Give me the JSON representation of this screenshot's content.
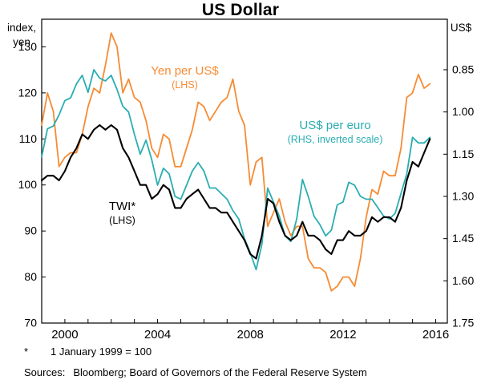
{
  "chart": {
    "title": "US Dollar",
    "lhs_unit": "index,\nyen",
    "rhs_unit": "US$",
    "annotations": {
      "yen": {
        "label": "Yen per US$",
        "sub": "(LHS)"
      },
      "euro": {
        "label": "US$ per euro",
        "sub": "(RHS, inverted scale)"
      },
      "twi": {
        "label": "TWI*",
        "sub": "(LHS)"
      }
    },
    "footnote": {
      "marker": "*",
      "text": "1 January 1999 = 100"
    },
    "sources": {
      "label": "Sources:",
      "text": "Bloomberg; Board of Governors of the Federal Reserve System"
    }
  },
  "chart_data": {
    "type": "line",
    "title": "US Dollar",
    "grid": false,
    "x_start": 1999.0,
    "x_step": 0.25,
    "x_axis": {
      "range": [
        1999,
        2016.5
      ],
      "tick_years": [
        1999,
        2000,
        2001,
        2002,
        2003,
        2004,
        2005,
        2006,
        2007,
        2008,
        2009,
        2010,
        2011,
        2012,
        2013,
        2014,
        2015,
        2016
      ],
      "label_years": [
        "2000",
        "2004",
        "2008",
        "2012",
        "2016"
      ]
    },
    "left_axis": {
      "label": "index, yen",
      "ticks": [
        130,
        120,
        110,
        100,
        90,
        80,
        70
      ],
      "tick_labels": [
        "130",
        "120",
        "110",
        "100",
        "90",
        "80",
        "70"
      ],
      "plot_range": [
        70,
        136
      ]
    },
    "right_axis": {
      "label": "US$",
      "inverted": true,
      "ticks": [
        0.85,
        1.0,
        1.15,
        1.3,
        1.45,
        1.6,
        1.75
      ],
      "tick_labels": [
        "0.85",
        "1.00",
        "1.15",
        "1.30",
        "1.45",
        "1.60",
        "1.75"
      ],
      "plot_range": [
        1.75,
        0.6706
      ]
    },
    "series": [
      {
        "id": "yen",
        "name": "Yen per US$ (LHS)",
        "axis": "lhs",
        "color": "#F68B33",
        "width": 1.8,
        "values": [
          113,
          120,
          116,
          104,
          106,
          107,
          107,
          111,
          117,
          121,
          120,
          126,
          133,
          130,
          120,
          123,
          119,
          118,
          114,
          108,
          106,
          111,
          110,
          104,
          104,
          108,
          112,
          118,
          117,
          114,
          116,
          118,
          119,
          123,
          116,
          113,
          100,
          105,
          106,
          91,
          94,
          97,
          92,
          89,
          91,
          91,
          84,
          82,
          82,
          81,
          77,
          78,
          80,
          80,
          78,
          84,
          93,
          99,
          98,
          103,
          102,
          102,
          108,
          119,
          120,
          124,
          121,
          122
        ]
      },
      {
        "id": "euro",
        "name": "US$ per euro (RHS, inverted scale)",
        "axis": "rhs",
        "color": "#2AADB2",
        "width": 1.8,
        "values": [
          1.16,
          1.06,
          1.05,
          1.01,
          0.96,
          0.95,
          0.9,
          0.87,
          0.93,
          0.85,
          0.88,
          0.89,
          0.87,
          0.92,
          0.98,
          1.0,
          1.08,
          1.15,
          1.1,
          1.17,
          1.26,
          1.2,
          1.22,
          1.3,
          1.31,
          1.26,
          1.21,
          1.18,
          1.21,
          1.27,
          1.27,
          1.29,
          1.31,
          1.35,
          1.38,
          1.45,
          1.5,
          1.56,
          1.47,
          1.27,
          1.32,
          1.37,
          1.44,
          1.46,
          1.38,
          1.24,
          1.3,
          1.37,
          1.4,
          1.44,
          1.42,
          1.33,
          1.32,
          1.25,
          1.26,
          1.3,
          1.31,
          1.31,
          1.34,
          1.37,
          1.38,
          1.36,
          1.29,
          1.22,
          1.09,
          1.11,
          1.11,
          1.09
        ]
      },
      {
        "id": "twi",
        "name": "TWI (LHS), 1 January 1999 = 100",
        "axis": "lhs",
        "color": "#000000",
        "width": 2.1,
        "values": [
          101,
          102,
          102,
          101,
          103,
          106,
          108,
          111,
          110,
          112,
          113,
          112,
          113,
          112,
          108,
          106,
          103,
          100,
          100,
          97,
          98,
          100,
          99,
          95,
          95,
          97,
          98,
          99,
          97,
          95,
          95,
          94,
          94,
          92,
          90,
          88,
          85,
          84,
          89,
          97,
          96,
          92,
          89,
          88,
          89,
          92,
          89,
          89,
          88,
          86,
          85,
          88,
          88,
          90,
          89,
          89,
          90,
          93,
          92,
          93,
          93,
          92,
          95,
          101,
          105,
          104,
          107,
          110
        ]
      }
    ]
  }
}
